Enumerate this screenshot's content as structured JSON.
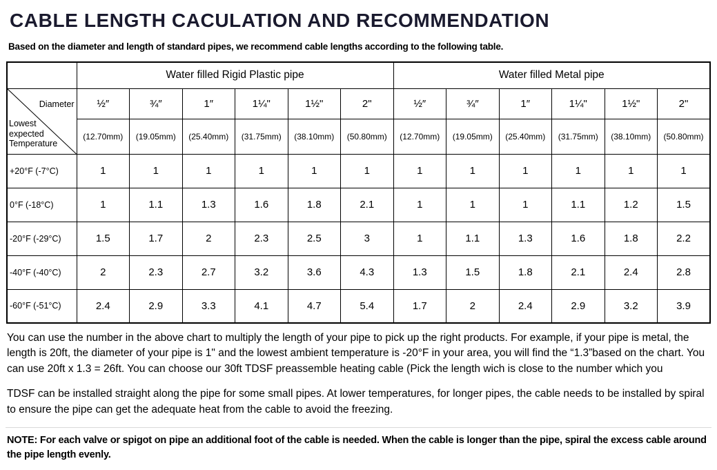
{
  "title": "CABLE LENGTH CACULATION AND RECOMMENDATION",
  "subtitle": "Based on the diameter and length of standard pipes, we recommend cable lengths according to the following  table.",
  "table": {
    "group_headers": [
      "Water filled Rigid Plastic pipe",
      "Water filled Metal pipe"
    ],
    "corner": {
      "diameter": "Diameter",
      "temperature": "Lowest\nexpected\nTemperature"
    },
    "diameters": [
      "½″",
      "¾″",
      "1″",
      "1¼\"",
      "1½\"",
      "2\""
    ],
    "diameters_mm": [
      "(12.70mm)",
      "(19.05mm)",
      "(25.40mm)",
      "(31.75mm)",
      "(38.10mm)",
      "(50.80mm)"
    ],
    "rows": [
      {
        "label": "+20°F (-7°C)",
        "plastic": [
          "1",
          "1",
          "1",
          "1",
          "1",
          "1"
        ],
        "metal": [
          "1",
          "1",
          "1",
          "1",
          "1",
          "1"
        ]
      },
      {
        "label": "0°F (-18°C)",
        "plastic": [
          "1",
          "1.1",
          "1.3",
          "1.6",
          "1.8",
          "2.1"
        ],
        "metal": [
          "1",
          "1",
          "1",
          "1.1",
          "1.2",
          "1.5"
        ]
      },
      {
        "label": "-20°F (-29°C)",
        "plastic": [
          "1.5",
          "1.7",
          "2",
          "2.3",
          "2.5",
          "3"
        ],
        "metal": [
          "1",
          "1.1",
          "1.3",
          "1.6",
          "1.8",
          "2.2"
        ]
      },
      {
        "label": "-40°F (-40°C)",
        "plastic": [
          "2",
          "2.3",
          "2.7",
          "3.2",
          "3.6",
          "4.3"
        ],
        "metal": [
          "1.3",
          "1.5",
          "1.8",
          "2.1",
          "2.4",
          "2.8"
        ]
      },
      {
        "label": "-60°F (-51°C)",
        "plastic": [
          "2.4",
          "2.9",
          "3.3",
          "4.1",
          "4.7",
          "5.4"
        ],
        "metal": [
          "1.7",
          "2",
          "2.4",
          "2.9",
          "3.2",
          "3.9"
        ]
      }
    ]
  },
  "paragraphs": {
    "usage": "You can use the number in the above chart to multiply the length of your pipe to pick up the right products. For example, if your pipe is metal, the length is 20ft, the diameter of your pipe is 1\" and the lowest ambient temperature is -20°F in your area, you will find the “1.3”based on the chart. You can use 20ft x 1.3 = 26ft. You can choose our 30ft TDSF preassemble heating cable (Pick the length wich is close to the number which you",
    "install": "TDSF can be installed straight along the pipe for some small pipes. At lower temperatures, for longer pipes, the cable needs to be installed by spiral to ensure the pipe can get the adequate heat from the cable to avoid the freezing.",
    "note": "NOTE: For each valve or spigot on pipe an additional foot of the cable is needed. When the cable is longer than the pipe, spiral the excess cable around the pipe length evenly."
  }
}
